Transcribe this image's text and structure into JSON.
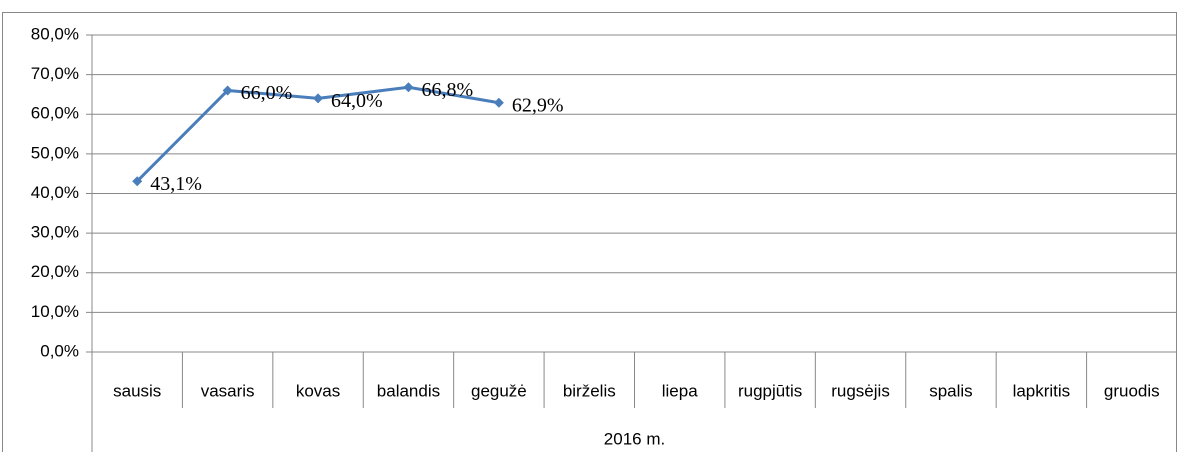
{
  "chart_data": {
    "type": "line",
    "categories": [
      "sausis",
      "vasaris",
      "kovas",
      "balandis",
      "gegužė",
      "birželis",
      "liepa",
      "rugpjūtis",
      "rugsėjis",
      "spalis",
      "lapkritis",
      "gruodis"
    ],
    "group_label": "2016 m.",
    "series": [
      {
        "color": "#4a7ebb",
        "values": [
          43.1,
          66.0,
          64.0,
          66.8,
          62.9,
          null,
          null,
          null,
          null,
          null,
          null,
          null
        ],
        "value_labels": [
          "43,1%",
          "66,0%",
          "64,0%",
          "66,8%",
          "62,9%",
          null,
          null,
          null,
          null,
          null,
          null,
          null
        ]
      }
    ],
    "ylim": [
      0,
      80
    ],
    "yticks": [
      {
        "value": 0,
        "label": "0,0%"
      },
      {
        "value": 10,
        "label": "10,0%"
      },
      {
        "value": 20,
        "label": "20,0%"
      },
      {
        "value": 30,
        "label": "30,0%"
      },
      {
        "value": 40,
        "label": "40,0%"
      },
      {
        "value": 50,
        "label": "50,0%"
      },
      {
        "value": 60,
        "label": "60,0%"
      },
      {
        "value": 70,
        "label": "70,0%"
      },
      {
        "value": 80,
        "label": "80,0%"
      }
    ],
    "grid": true
  }
}
